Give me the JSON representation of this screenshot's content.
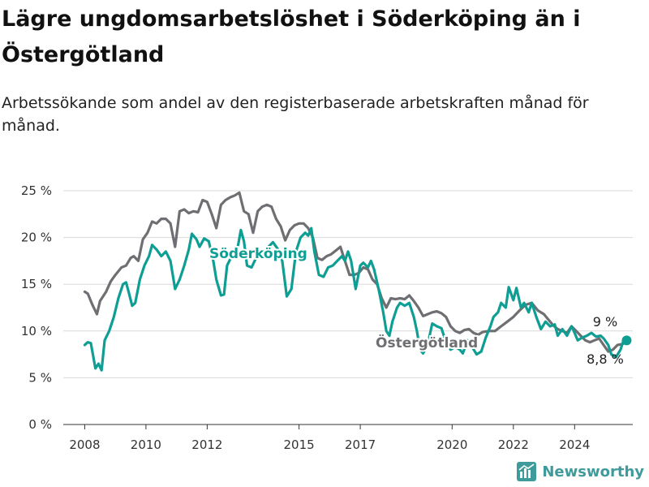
{
  "title": "Lägre ungdomsarbetslöshet i Söderköping än i Östergötland",
  "subtitle": "Arbetssökande som andel av den registerbaserade arbetskraften månad för månad.",
  "brand": "Newsworthy",
  "colors": {
    "soderkoping": "#0f9e94",
    "ostergotland": "#6f6f73",
    "grid": "#d9d9d9"
  },
  "chart_data": {
    "type": "line",
    "x_range": [
      2007.3,
      2025.9
    ],
    "ylim": [
      0,
      25
    ],
    "x_ticks": [
      2008,
      2010,
      2012,
      2015,
      2017,
      2020,
      2022,
      2024
    ],
    "y_ticks": [
      {
        "value": 0,
        "label": "0 %"
      },
      {
        "value": 5,
        "label": "5 %"
      },
      {
        "value": 10,
        "label": "10 %"
      },
      {
        "value": 15,
        "label": "15 %"
      },
      {
        "value": 20,
        "label": "20 %"
      },
      {
        "value": 25,
        "label": "25 %"
      }
    ],
    "series": [
      {
        "name": "Östergötland",
        "key": "ostergotland",
        "end_label": "8,8 %",
        "points": [
          [
            2008.0,
            14.2
          ],
          [
            2008.1,
            14.0
          ],
          [
            2008.25,
            12.8
          ],
          [
            2008.4,
            11.8
          ],
          [
            2008.5,
            13.2
          ],
          [
            2008.7,
            14.2
          ],
          [
            2008.85,
            15.3
          ],
          [
            2009.0,
            16.0
          ],
          [
            2009.2,
            16.8
          ],
          [
            2009.35,
            17.0
          ],
          [
            2009.5,
            17.8
          ],
          [
            2009.6,
            18.0
          ],
          [
            2009.75,
            17.5
          ],
          [
            2009.9,
            19.8
          ],
          [
            2010.05,
            20.5
          ],
          [
            2010.2,
            21.7
          ],
          [
            2010.35,
            21.5
          ],
          [
            2010.5,
            22.0
          ],
          [
            2010.65,
            22.0
          ],
          [
            2010.8,
            21.5
          ],
          [
            2010.95,
            19.0
          ],
          [
            2011.1,
            22.8
          ],
          [
            2011.25,
            23.0
          ],
          [
            2011.4,
            22.6
          ],
          [
            2011.55,
            22.8
          ],
          [
            2011.7,
            22.7
          ],
          [
            2011.85,
            24.0
          ],
          [
            2012.0,
            23.8
          ],
          [
            2012.15,
            22.5
          ],
          [
            2012.3,
            21.0
          ],
          [
            2012.45,
            23.5
          ],
          [
            2012.6,
            24.0
          ],
          [
            2012.75,
            24.3
          ],
          [
            2012.9,
            24.5
          ],
          [
            2013.05,
            24.8
          ],
          [
            2013.2,
            22.8
          ],
          [
            2013.35,
            22.5
          ],
          [
            2013.5,
            20.5
          ],
          [
            2013.65,
            22.8
          ],
          [
            2013.8,
            23.3
          ],
          [
            2013.95,
            23.5
          ],
          [
            2014.1,
            23.3
          ],
          [
            2014.25,
            22.0
          ],
          [
            2014.4,
            21.2
          ],
          [
            2014.55,
            19.7
          ],
          [
            2014.7,
            20.8
          ],
          [
            2014.85,
            21.3
          ],
          [
            2015.0,
            21.5
          ],
          [
            2015.15,
            21.5
          ],
          [
            2015.3,
            21.0
          ],
          [
            2015.45,
            20.0
          ],
          [
            2015.6,
            17.8
          ],
          [
            2015.75,
            17.6
          ],
          [
            2015.9,
            18.0
          ],
          [
            2016.05,
            18.2
          ],
          [
            2016.2,
            18.6
          ],
          [
            2016.35,
            19.0
          ],
          [
            2016.5,
            17.5
          ],
          [
            2016.65,
            16.0
          ],
          [
            2016.8,
            16.0
          ],
          [
            2016.95,
            16.2
          ],
          [
            2017.1,
            16.8
          ],
          [
            2017.25,
            16.6
          ],
          [
            2017.4,
            15.5
          ],
          [
            2017.55,
            15.0
          ],
          [
            2017.7,
            13.5
          ],
          [
            2017.85,
            12.5
          ],
          [
            2018.0,
            13.5
          ],
          [
            2018.15,
            13.4
          ],
          [
            2018.3,
            13.5
          ],
          [
            2018.45,
            13.4
          ],
          [
            2018.6,
            13.8
          ],
          [
            2018.75,
            13.2
          ],
          [
            2018.9,
            12.5
          ],
          [
            2019.05,
            11.6
          ],
          [
            2019.2,
            11.8
          ],
          [
            2019.35,
            12.0
          ],
          [
            2019.5,
            12.1
          ],
          [
            2019.65,
            11.9
          ],
          [
            2019.8,
            11.5
          ],
          [
            2019.95,
            10.5
          ],
          [
            2020.1,
            10.0
          ],
          [
            2020.25,
            9.8
          ],
          [
            2020.4,
            10.1
          ],
          [
            2020.55,
            10.2
          ],
          [
            2020.7,
            9.8
          ],
          [
            2020.85,
            9.6
          ],
          [
            2021.0,
            9.9
          ],
          [
            2021.2,
            10.0
          ],
          [
            2021.4,
            10.0
          ],
          [
            2021.6,
            10.5
          ],
          [
            2021.8,
            11.0
          ],
          [
            2022.0,
            11.5
          ],
          [
            2022.2,
            12.2
          ],
          [
            2022.4,
            12.8
          ],
          [
            2022.6,
            13.0
          ],
          [
            2022.8,
            12.2
          ],
          [
            2023.0,
            11.8
          ],
          [
            2023.15,
            11.2
          ],
          [
            2023.3,
            10.6
          ],
          [
            2023.45,
            10.2
          ],
          [
            2023.6,
            10.0
          ],
          [
            2023.75,
            9.8
          ],
          [
            2023.9,
            10.5
          ],
          [
            2024.05,
            10.0
          ],
          [
            2024.2,
            9.5
          ],
          [
            2024.35,
            9.0
          ],
          [
            2024.5,
            8.8
          ],
          [
            2024.65,
            9.0
          ],
          [
            2024.8,
            9.2
          ],
          [
            2024.95,
            8.5
          ],
          [
            2025.1,
            7.8
          ],
          [
            2025.25,
            8.0
          ],
          [
            2025.4,
            8.5
          ],
          [
            2025.55,
            8.6
          ],
          [
            2025.7,
            8.8
          ]
        ]
      },
      {
        "name": "Söderköping",
        "key": "soderkoping",
        "end_label": "9 %",
        "points": [
          [
            2008.0,
            8.5
          ],
          [
            2008.1,
            8.8
          ],
          [
            2008.2,
            8.7
          ],
          [
            2008.35,
            6.0
          ],
          [
            2008.45,
            6.5
          ],
          [
            2008.55,
            5.8
          ],
          [
            2008.65,
            9.0
          ],
          [
            2008.8,
            10.0
          ],
          [
            2008.95,
            11.5
          ],
          [
            2009.1,
            13.5
          ],
          [
            2009.25,
            15.0
          ],
          [
            2009.35,
            15.2
          ],
          [
            2009.45,
            14.0
          ],
          [
            2009.55,
            12.7
          ],
          [
            2009.65,
            13.0
          ],
          [
            2009.8,
            15.5
          ],
          [
            2009.95,
            17.0
          ],
          [
            2010.1,
            18.0
          ],
          [
            2010.2,
            19.2
          ],
          [
            2010.35,
            18.7
          ],
          [
            2010.5,
            18.0
          ],
          [
            2010.65,
            18.5
          ],
          [
            2010.8,
            17.5
          ],
          [
            2010.95,
            14.5
          ],
          [
            2011.1,
            15.5
          ],
          [
            2011.25,
            17.0
          ],
          [
            2011.4,
            18.7
          ],
          [
            2011.5,
            20.4
          ],
          [
            2011.65,
            19.8
          ],
          [
            2011.75,
            19.0
          ],
          [
            2011.9,
            19.9
          ],
          [
            2012.05,
            19.6
          ],
          [
            2012.2,
            17.5
          ],
          [
            2012.3,
            15.5
          ],
          [
            2012.45,
            13.8
          ],
          [
            2012.55,
            13.9
          ],
          [
            2012.65,
            17.0
          ],
          [
            2012.8,
            18.0
          ],
          [
            2012.95,
            18.1
          ],
          [
            2013.1,
            20.8
          ],
          [
            2013.2,
            19.6
          ],
          [
            2013.3,
            17.0
          ],
          [
            2013.45,
            16.8
          ],
          [
            2013.55,
            17.5
          ],
          [
            2013.7,
            18.5
          ],
          [
            2013.85,
            18.0
          ],
          [
            2014.0,
            19.0
          ],
          [
            2014.15,
            19.5
          ],
          [
            2014.3,
            18.8
          ],
          [
            2014.45,
            17.5
          ],
          [
            2014.6,
            13.7
          ],
          [
            2014.75,
            14.5
          ],
          [
            2014.9,
            18.5
          ],
          [
            2015.05,
            20.0
          ],
          [
            2015.2,
            20.5
          ],
          [
            2015.3,
            20.2
          ],
          [
            2015.4,
            21.0
          ],
          [
            2015.5,
            18.5
          ],
          [
            2015.65,
            16.0
          ],
          [
            2015.8,
            15.8
          ],
          [
            2015.95,
            16.8
          ],
          [
            2016.1,
            17.0
          ],
          [
            2016.25,
            17.5
          ],
          [
            2016.4,
            18.0
          ],
          [
            2016.5,
            17.5
          ],
          [
            2016.6,
            18.5
          ],
          [
            2016.7,
            17.5
          ],
          [
            2016.85,
            14.5
          ],
          [
            2017.0,
            17.0
          ],
          [
            2017.1,
            17.3
          ],
          [
            2017.25,
            16.8
          ],
          [
            2017.35,
            17.5
          ],
          [
            2017.45,
            16.6
          ],
          [
            2017.6,
            14.5
          ],
          [
            2017.75,
            12.0
          ],
          [
            2017.85,
            10.0
          ],
          [
            2017.95,
            9.5
          ],
          [
            2018.05,
            11.0
          ],
          [
            2018.2,
            12.5
          ],
          [
            2018.3,
            13.0
          ],
          [
            2018.45,
            12.7
          ],
          [
            2018.6,
            13.0
          ],
          [
            2018.75,
            11.5
          ],
          [
            2018.85,
            10.0
          ],
          [
            2018.95,
            8.0
          ],
          [
            2019.05,
            7.6
          ],
          [
            2019.2,
            8.5
          ],
          [
            2019.35,
            10.8
          ],
          [
            2019.5,
            10.5
          ],
          [
            2019.65,
            10.3
          ],
          [
            2019.8,
            8.8
          ],
          [
            2019.95,
            8.0
          ],
          [
            2020.1,
            8.3
          ],
          [
            2020.25,
            8.0
          ],
          [
            2020.35,
            7.6
          ],
          [
            2020.5,
            9.0
          ],
          [
            2020.65,
            8.3
          ],
          [
            2020.8,
            7.5
          ],
          [
            2020.95,
            7.8
          ],
          [
            2021.1,
            9.3
          ],
          [
            2021.25,
            10.5
          ],
          [
            2021.35,
            11.5
          ],
          [
            2021.5,
            12.0
          ],
          [
            2021.6,
            13.0
          ],
          [
            2021.75,
            12.5
          ],
          [
            2021.85,
            14.7
          ],
          [
            2022.0,
            13.3
          ],
          [
            2022.1,
            14.6
          ],
          [
            2022.25,
            12.5
          ],
          [
            2022.35,
            13.0
          ],
          [
            2022.5,
            12.0
          ],
          [
            2022.6,
            13.0
          ],
          [
            2022.75,
            11.5
          ],
          [
            2022.9,
            10.2
          ],
          [
            2023.05,
            11.0
          ],
          [
            2023.2,
            10.5
          ],
          [
            2023.35,
            10.7
          ],
          [
            2023.45,
            9.5
          ],
          [
            2023.6,
            10.2
          ],
          [
            2023.75,
            9.5
          ],
          [
            2023.9,
            10.5
          ],
          [
            2024.0,
            9.8
          ],
          [
            2024.1,
            9.0
          ],
          [
            2024.25,
            9.3
          ],
          [
            2024.4,
            9.5
          ],
          [
            2024.55,
            9.8
          ],
          [
            2024.7,
            9.4
          ],
          [
            2024.85,
            9.5
          ],
          [
            2024.95,
            9.2
          ],
          [
            2025.1,
            8.5
          ],
          [
            2025.2,
            7.5
          ],
          [
            2025.35,
            7.2
          ],
          [
            2025.5,
            8.0
          ],
          [
            2025.6,
            9.0
          ],
          [
            2025.7,
            9.0
          ]
        ]
      }
    ]
  }
}
